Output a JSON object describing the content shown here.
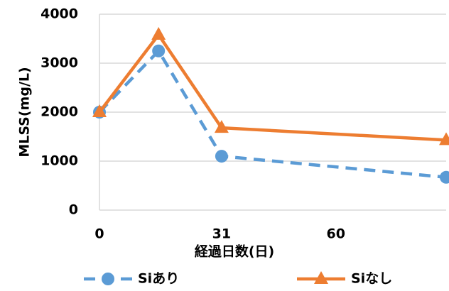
{
  "chart_data": {
    "type": "line",
    "x_label": "経過日数(日)",
    "y_label": "MLSS(mg/L)",
    "x": [
      0,
      15,
      31,
      88
    ],
    "xlim": [
      0,
      88
    ],
    "xticks": [
      0,
      31,
      60
    ],
    "ylim": [
      0,
      4000
    ],
    "yticks": [
      0,
      1000,
      2000,
      3000,
      4000
    ],
    "grid": true,
    "legend": "bottom",
    "series": [
      {
        "name": "Siあり",
        "color": "#5b9bd5",
        "dashed": true,
        "marker": "circle",
        "values": [
          2000,
          3250,
          1100,
          670
        ]
      },
      {
        "name": "Siなし",
        "color": "#ed7d31",
        "dashed": false,
        "marker": "triangle",
        "values": [
          2000,
          3580,
          1680,
          1430
        ]
      }
    ]
  }
}
